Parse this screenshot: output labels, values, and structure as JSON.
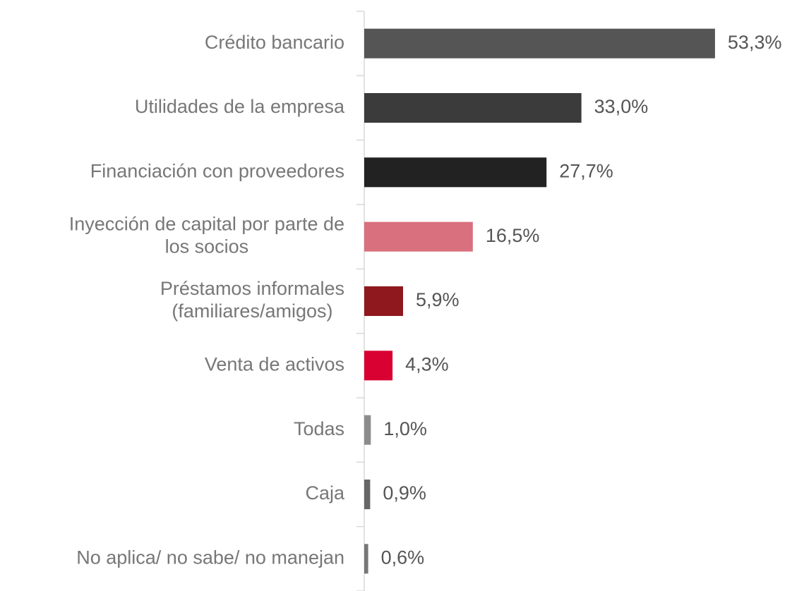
{
  "chart_data": {
    "type": "bar",
    "orientation": "horizontal",
    "categories": [
      "Crédito bancario",
      "Utilidades de la empresa",
      "Financiación con proveedores",
      "Inyección de capital por parte de\nlos socios",
      "Préstamos informales\n(familiares/amigos)",
      "Venta de activos",
      "Todas",
      "Caja",
      "No aplica/ no sabe/ no manejan"
    ],
    "values": [
      53.3,
      33.0,
      27.7,
      16.5,
      5.9,
      4.3,
      1.0,
      0.9,
      0.6
    ],
    "value_labels": [
      "53,3%",
      "33,0%",
      "27,7%",
      "16,5%",
      "5,9%",
      "4,3%",
      "1,0%",
      "0,9%",
      "0,6%"
    ],
    "colors": [
      "#555555",
      "#3b3b3b",
      "#222222",
      "#d9707e",
      "#8e181d",
      "#d90032",
      "#8c8c8c",
      "#666666",
      "#777777"
    ],
    "xlim": [
      0,
      65
    ]
  }
}
